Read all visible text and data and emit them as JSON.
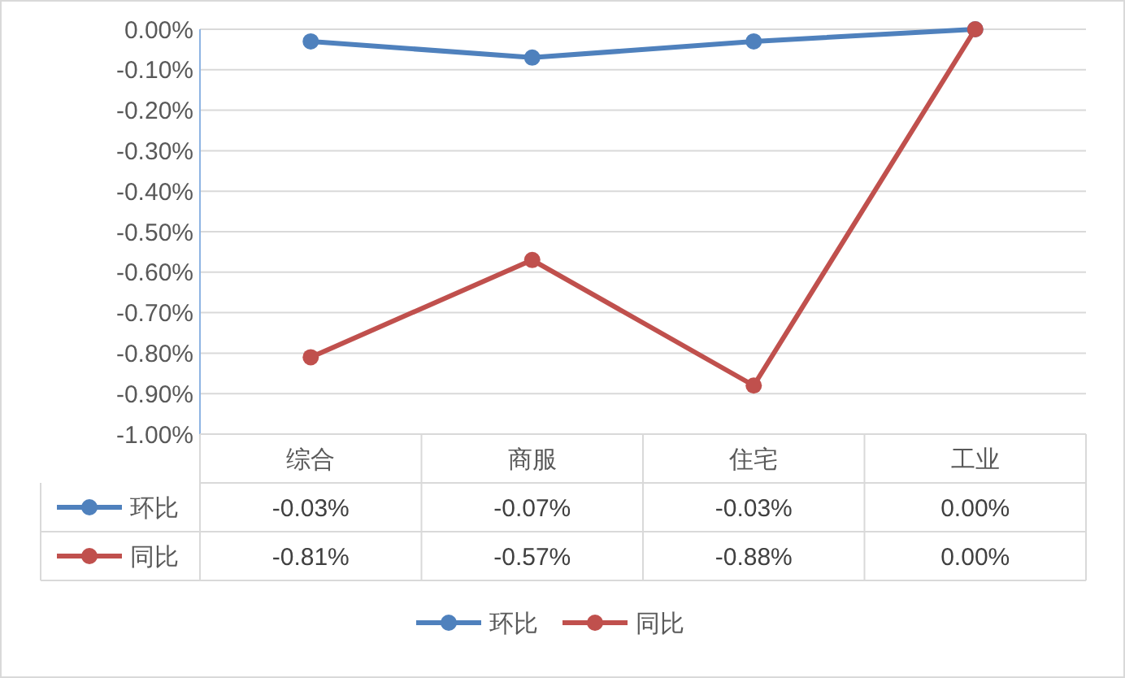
{
  "chart_data": {
    "type": "line",
    "categories": [
      "综合",
      "商服",
      "住宅",
      "工业"
    ],
    "series": [
      {
        "name": "环比",
        "color": "#4f81bd",
        "values": [
          -0.03,
          -0.07,
          -0.03,
          0.0
        ],
        "value_labels": [
          "-0.03%",
          "-0.07%",
          "-0.03%",
          "0.00%"
        ]
      },
      {
        "name": "同比",
        "color": "#c0504d",
        "values": [
          -0.81,
          -0.57,
          -0.88,
          0.0
        ],
        "value_labels": [
          "-0.81%",
          "-0.57%",
          "-0.88%",
          "0.00%"
        ]
      }
    ],
    "ylim": [
      -1,
      0
    ],
    "yticks": [
      {
        "value": 0,
        "label": "0.00%"
      },
      {
        "value": -0.1,
        "label": "-0.10%"
      },
      {
        "value": -0.2,
        "label": "-0.20%"
      },
      {
        "value": -0.3,
        "label": "-0.30%"
      },
      {
        "value": -0.4,
        "label": "-0.40%"
      },
      {
        "value": -0.5,
        "label": "-0.50%"
      },
      {
        "value": -0.6,
        "label": "-0.60%"
      },
      {
        "value": -0.7,
        "label": "-0.70%"
      },
      {
        "value": -0.8,
        "label": "-0.80%"
      },
      {
        "value": -0.9,
        "label": "-0.90%"
      },
      {
        "value": -1,
        "label": "-1.00%"
      }
    ],
    "grid": "y",
    "legend": "bottom",
    "marker": "circle",
    "line_style": "solid"
  }
}
